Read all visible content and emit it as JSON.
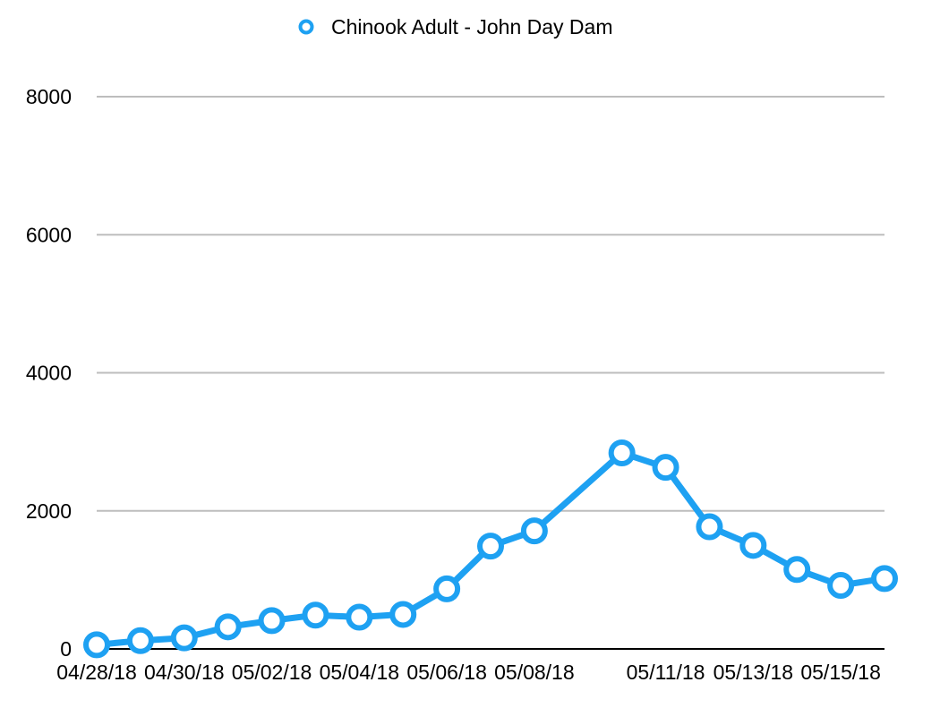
{
  "chart_data": {
    "type": "line",
    "title": "",
    "xlabel": "",
    "ylabel": "",
    "legend_position": "top-center",
    "grid": true,
    "ylim": [
      0,
      8000
    ],
    "y_ticks": [
      "0",
      "2000",
      "4000",
      "6000",
      "8000"
    ],
    "x_tick_labels": [
      "04/28/18",
      "04/30/18",
      "05/02/18",
      "05/04/18",
      "05/06/18",
      "05/08/18",
      "05/11/18",
      "05/13/18",
      "05/15/18"
    ],
    "series": [
      {
        "name": "Chinook Adult - John Day Dam",
        "color": "#1ea1f2",
        "x": [
          "04/28/18",
          "04/29/18",
          "04/30/18",
          "05/01/18",
          "05/02/18",
          "05/03/18",
          "05/04/18",
          "05/05/18",
          "05/06/18",
          "05/07/18",
          "05/08/18",
          "05/10/18",
          "05/11/18",
          "05/12/18",
          "05/13/18",
          "05/14/18",
          "05/15/18",
          "05/16/18"
        ],
        "values": [
          60,
          120,
          160,
          320,
          410,
          490,
          460,
          500,
          870,
          1490,
          1710,
          2840,
          2630,
          1770,
          1500,
          1150,
          920,
          1020
        ]
      }
    ]
  }
}
